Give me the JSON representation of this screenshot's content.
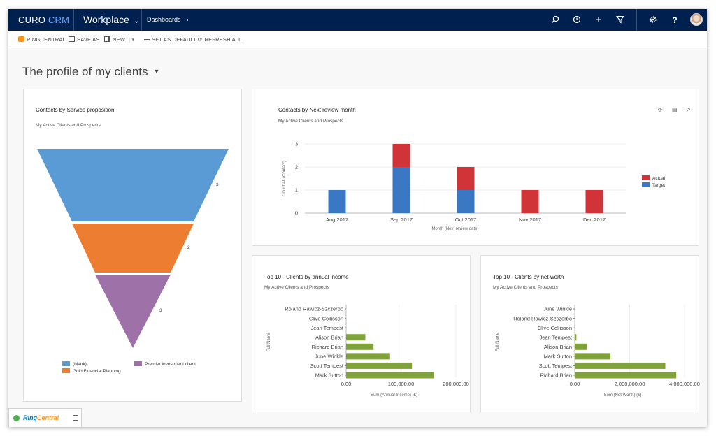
{
  "nav": {
    "brand_a": "CURO",
    "brand_b": "CRM",
    "workspace": "Workplace",
    "breadcrumb": "Dashboards"
  },
  "commands": {
    "ringcentral": "RINGCENTRAL",
    "save_as": "SAVE AS",
    "new": "NEW",
    "set_default": "SET AS DEFAULT",
    "refresh_all": "REFRESH ALL"
  },
  "page_title": "The profile of my clients",
  "funnel": {
    "title": "Contacts by Service proposition",
    "subtitle": "My Active Clients and Prospects",
    "legend": {
      "blank": "(blank)",
      "premier": "Premier investment client",
      "gold": "Gold Financial Planning"
    },
    "colors": {
      "blank": "#5b9bd5",
      "gold": "#ed7d31",
      "premier": "#9e72a8"
    }
  },
  "chart_data": [
    {
      "type": "funnel",
      "title": "Contacts by Service proposition",
      "subtitle": "My Active Clients and Prospects",
      "categories": [
        "(blank)",
        "Gold Financial Planning",
        "Premier investment client"
      ],
      "values": [
        3,
        2,
        3
      ]
    },
    {
      "type": "bar",
      "stacked": true,
      "title": "Contacts by Next review month",
      "subtitle": "My Active Clients and Prospects",
      "categories": [
        "Aug 2017",
        "Sep 2017",
        "Oct 2017",
        "Nov 2017",
        "Dec 2017"
      ],
      "series": [
        {
          "name": "Target",
          "values": [
            1,
            2,
            1,
            0,
            0
          ],
          "color": "#3a78c3"
        },
        {
          "name": "Actual",
          "values": [
            0,
            1,
            1,
            1,
            1
          ],
          "color": "#d13438"
        }
      ],
      "xlabel": "Month (Next review date)",
      "ylabel": "Count:All (Contact)",
      "ylim": [
        0,
        3
      ],
      "yticks": [
        "0",
        "1",
        "2",
        "3"
      ],
      "legend": "right"
    },
    {
      "type": "bar",
      "orientation": "horizontal",
      "title": "Top 10 - Clients by annual income",
      "subtitle": "My Active Clients and Prospects",
      "categories": [
        "Roland Rawicz-Szczerbo",
        "Clive Collisson",
        "Jean Tempest",
        "Alison Brian",
        "Richard Brian",
        "June Winkle",
        "Scott Tempest",
        "Mark Sutton"
      ],
      "values": [
        0,
        0,
        0,
        35000,
        50000,
        80000,
        120000,
        160000
      ],
      "xlabel": "Sum (Annual Income) (£)",
      "ylabel": "Full Name",
      "xlim": [
        0,
        200000
      ],
      "xticks": [
        "0.00",
        "100,000.00",
        "200,000.00"
      ],
      "color": "#7fa33a"
    },
    {
      "type": "bar",
      "orientation": "horizontal",
      "title": "Top 10 - Clients by net worth",
      "subtitle": "My Active Clients and Prospects",
      "categories": [
        "June Winkle",
        "Roland Rawicz-Szczerbo",
        "Clive Collisson",
        "Jean Tempest",
        "Alison Brian",
        "Mark Sutton",
        "Scott Tempest",
        "Richard Brian"
      ],
      "values": [
        0,
        0,
        0,
        60000,
        450000,
        1300000,
        3300000,
        3700000
      ],
      "xlabel": "Sum (Net Worth) (£)",
      "ylabel": "Full Name",
      "xlim": [
        0,
        4000000
      ],
      "xticks": [
        "0.00",
        "2,000,000.00",
        "4,000,000.00"
      ],
      "color": "#7fa33a"
    }
  ],
  "ringcentral_widget": {
    "name_a": "Ring",
    "name_b": "Central"
  }
}
